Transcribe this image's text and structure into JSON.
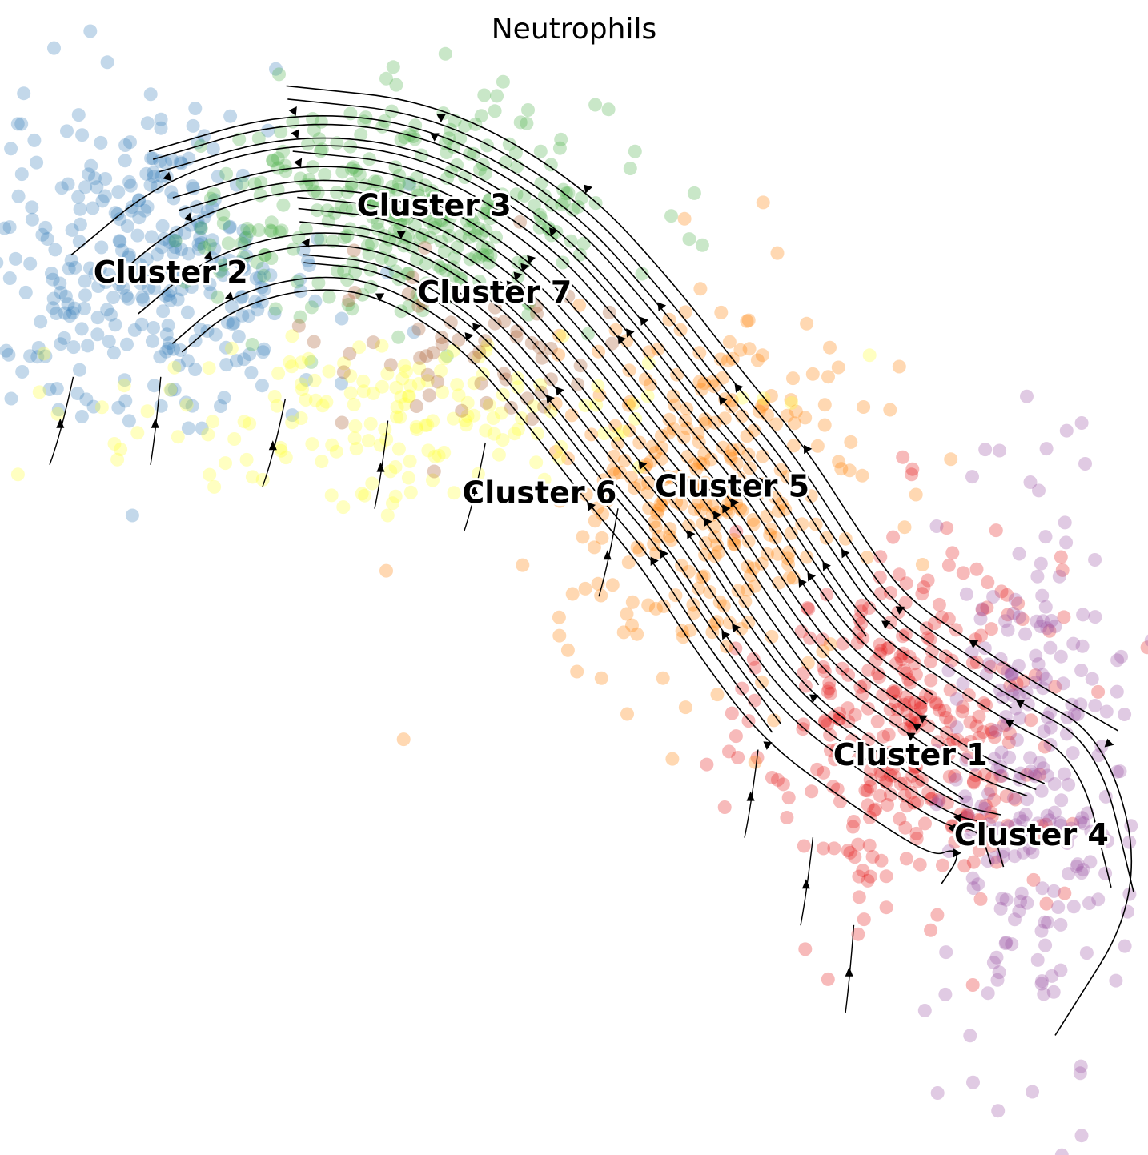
{
  "chart_data": {
    "type": "scatter",
    "title": "Neutrophils",
    "xlabel": "",
    "ylabel": "",
    "axes_visible": false,
    "grid": false,
    "legend": "on data",
    "overlay": "velocity streamlines with arrowheads",
    "x_range": [
      0,
      100
    ],
    "y_range": [
      0,
      100
    ],
    "clusters": [
      {
        "name": "Cluster 1",
        "color": "#e41a1c",
        "label_pos": [
          79.8,
          35.0
        ],
        "center": [
          80,
          38
        ],
        "spread": [
          6.5,
          9
        ],
        "count": 340
      },
      {
        "name": "Cluster 2",
        "color": "#377eb8",
        "label_pos": [
          13.8,
          79.0
        ],
        "center": [
          12,
          80
        ],
        "spread": [
          8,
          7
        ],
        "count": 320
      },
      {
        "name": "Cluster 3",
        "color": "#4daf4a",
        "label_pos": [
          37.3,
          85.1
        ],
        "center": [
          35,
          85
        ],
        "spread": [
          9,
          5
        ],
        "count": 330
      },
      {
        "name": "Cluster 4",
        "color": "#984ea3",
        "label_pos": [
          90.6,
          27.7
        ],
        "center": [
          91,
          34
        ],
        "spread": [
          4,
          13
        ],
        "count": 240
      },
      {
        "name": "Cluster 5",
        "color": "#ff7f00",
        "label_pos": [
          63.9,
          59.5
        ],
        "center": [
          62,
          59
        ],
        "spread": [
          7,
          8
        ],
        "count": 300
      },
      {
        "name": "Cluster 6",
        "color": "#ffff33",
        "label_pos": [
          46.7,
          58.9
        ],
        "center": [
          32,
          66
        ],
        "spread": [
          14,
          4
        ],
        "count": 170
      },
      {
        "name": "Cluster 7",
        "color": "#a65628",
        "label_pos": [
          42.7,
          77.2
        ],
        "center": [
          40,
          72
        ],
        "spread": [
          8,
          5
        ],
        "count": 60
      }
    ],
    "trajectory_points": [
      [
        3,
        70
      ],
      [
        8,
        78
      ],
      [
        15,
        84
      ],
      [
        25,
        87
      ],
      [
        35,
        86
      ],
      [
        45,
        80
      ],
      [
        52,
        72
      ],
      [
        58,
        64
      ],
      [
        63,
        58
      ],
      [
        68,
        50
      ],
      [
        73,
        43
      ],
      [
        80,
        38
      ],
      [
        86,
        34
      ],
      [
        91,
        32
      ],
      [
        93,
        24
      ],
      [
        88,
        16
      ],
      [
        80,
        14
      ],
      [
        74,
        9
      ],
      [
        71,
        2
      ]
    ],
    "side_branch_points": [
      [
        3,
        66
      ],
      [
        12,
        66
      ],
      [
        22,
        64
      ],
      [
        32,
        62
      ],
      [
        40,
        60
      ],
      [
        52,
        54
      ],
      [
        65,
        32
      ],
      [
        70,
        24
      ],
      [
        74,
        16
      ]
    ]
  }
}
